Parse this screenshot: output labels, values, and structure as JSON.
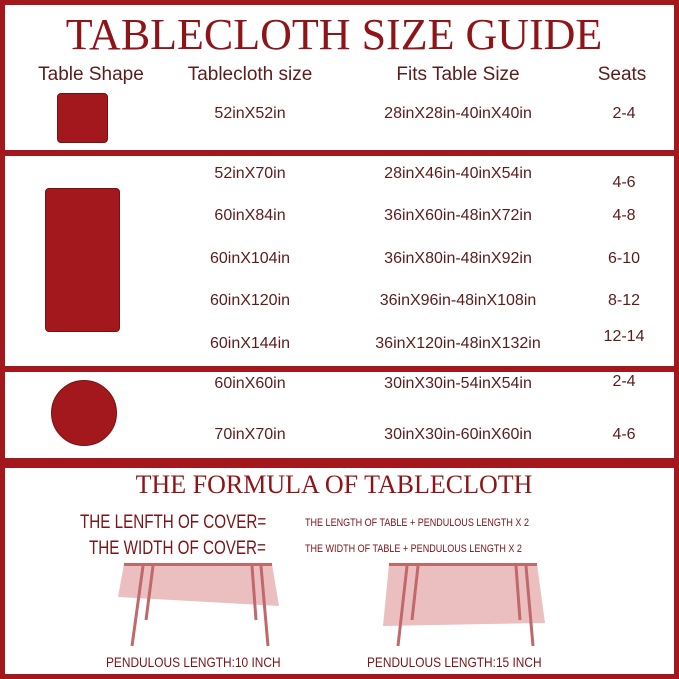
{
  "title": "TABLECLOTH SIZE GUIDE",
  "headers": {
    "shape": "Table Shape",
    "size": "Tablecloth size",
    "fits": "Fits Table Size",
    "seats": "Seats"
  },
  "square": [
    {
      "size": "52inX52in",
      "fits": "28inX28in-40inX40in",
      "seats": "2-4"
    }
  ],
  "rectangle": [
    {
      "size": "52inX70in",
      "fits": "28inX46in-40inX54in",
      "seats": "4-6"
    },
    {
      "size": "60inX84in",
      "fits": "36inX60in-48inX72in",
      "seats": "4-8"
    },
    {
      "size": "60inX104in",
      "fits": "36inX80in-48inX92in",
      "seats": "6-10"
    },
    {
      "size": "60inX120in",
      "fits": "36inX96in-48inX108in",
      "seats": "8-12"
    },
    {
      "size": "60inX144in",
      "fits": "36inX120in-48inX132in",
      "seats": "12-14"
    }
  ],
  "round": [
    {
      "size": "60inX60in",
      "fits": "30inX30in-54inX54in",
      "seats": "2-4"
    },
    {
      "size": "70inX70in",
      "fits": "30inX30in-60inX60in",
      "seats": "4-6"
    }
  ],
  "formula": {
    "title": "THE FORMULA OF TABLECLOTH",
    "length_label": "THE LENFTH OF COVER=",
    "length_expr": "THE LENGTH OF TABLE + PENDULOUS LENGTH  X  2",
    "width_label": "THE WIDTH OF COVER=",
    "width_expr": "THE WIDTH OF TABLE + PENDULOUS LENGTH  X  2",
    "pendulous_1": "PENDULOUS LENGTH:10 INCH",
    "pendulous_2": "PENDULOUS LENGTH:15 INCH"
  },
  "colors": {
    "brand": "#a3181c",
    "text": "#5b1c1c",
    "cloth": "#e8b4b4",
    "leg": "#c0686c"
  }
}
